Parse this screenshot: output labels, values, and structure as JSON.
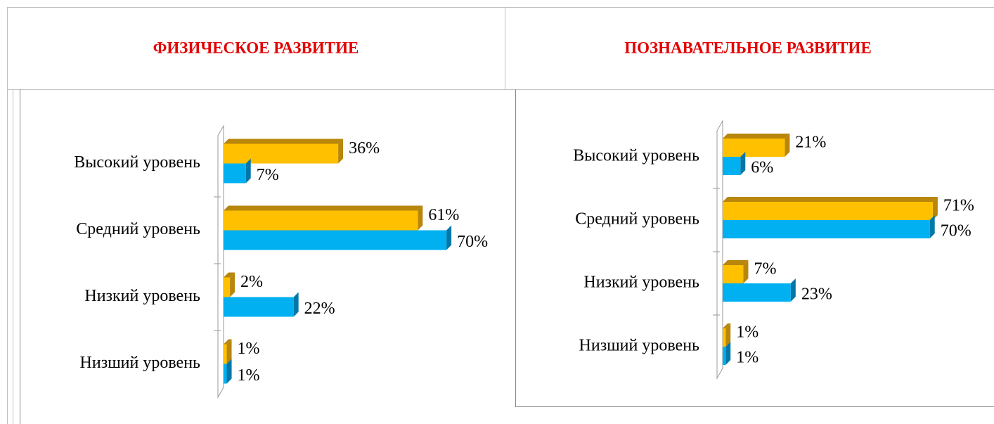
{
  "chart_data": [
    {
      "type": "bar",
      "title": "ФИЗИЧЕСКОЕ РАЗВИТИЕ",
      "categories": [
        "Высокий уровень",
        "Средний уровень",
        "Низкий уровень",
        "Низший уровень"
      ],
      "series": [
        {
          "color": "#ffc000",
          "values": [
            36,
            61,
            2,
            1
          ],
          "value_labels": [
            "36%",
            "61%",
            "2%",
            "1%"
          ]
        },
        {
          "color": "#00b0f0",
          "values": [
            7,
            70,
            22,
            1
          ],
          "value_labels": [
            "7%",
            "70%",
            "22%",
            "1%"
          ]
        }
      ]
    },
    {
      "type": "bar",
      "title": "ПОЗНАВАТЕЛЬНОЕ РАЗВИТИЕ",
      "categories": [
        "Высокий уровень",
        "Средний уровень",
        "Низкий уровень",
        "Низший уровень"
      ],
      "series": [
        {
          "color": "#ffc000",
          "values": [
            21,
            71,
            7,
            1
          ],
          "value_labels": [
            "21%",
            "71%",
            "7%",
            "1%"
          ]
        },
        {
          "color": "#00b0f0",
          "values": [
            6,
            70,
            23,
            1
          ],
          "value_labels": [
            "6%",
            "70%",
            "23%",
            "1%"
          ]
        }
      ]
    }
  ]
}
